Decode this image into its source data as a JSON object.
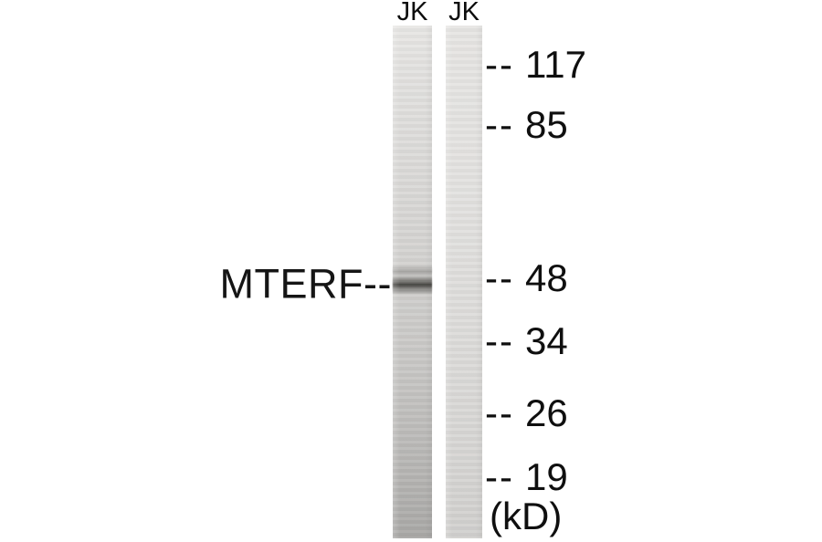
{
  "figure": {
    "lanes": [
      {
        "label": "JK"
      },
      {
        "label": "JK"
      }
    ],
    "band_label": "MTERF--",
    "markers": [
      {
        "dash": "--",
        "value": "117"
      },
      {
        "dash": "--",
        "value": "85"
      },
      {
        "dash": "--",
        "value": "48"
      },
      {
        "dash": "--",
        "value": "34"
      },
      {
        "dash": "--",
        "value": "26"
      },
      {
        "dash": "--",
        "value": "19"
      }
    ],
    "unit_label": "(kD)",
    "colors": {
      "background": "#ffffff",
      "text": "#101010",
      "lane1_top": "#e8e7e5",
      "lane1_bottom": "#aaa9a7",
      "lane2_top": "#e7e6e4",
      "lane2_bottom": "#d2d1cf",
      "band_dark": "#3c3b37"
    }
  }
}
